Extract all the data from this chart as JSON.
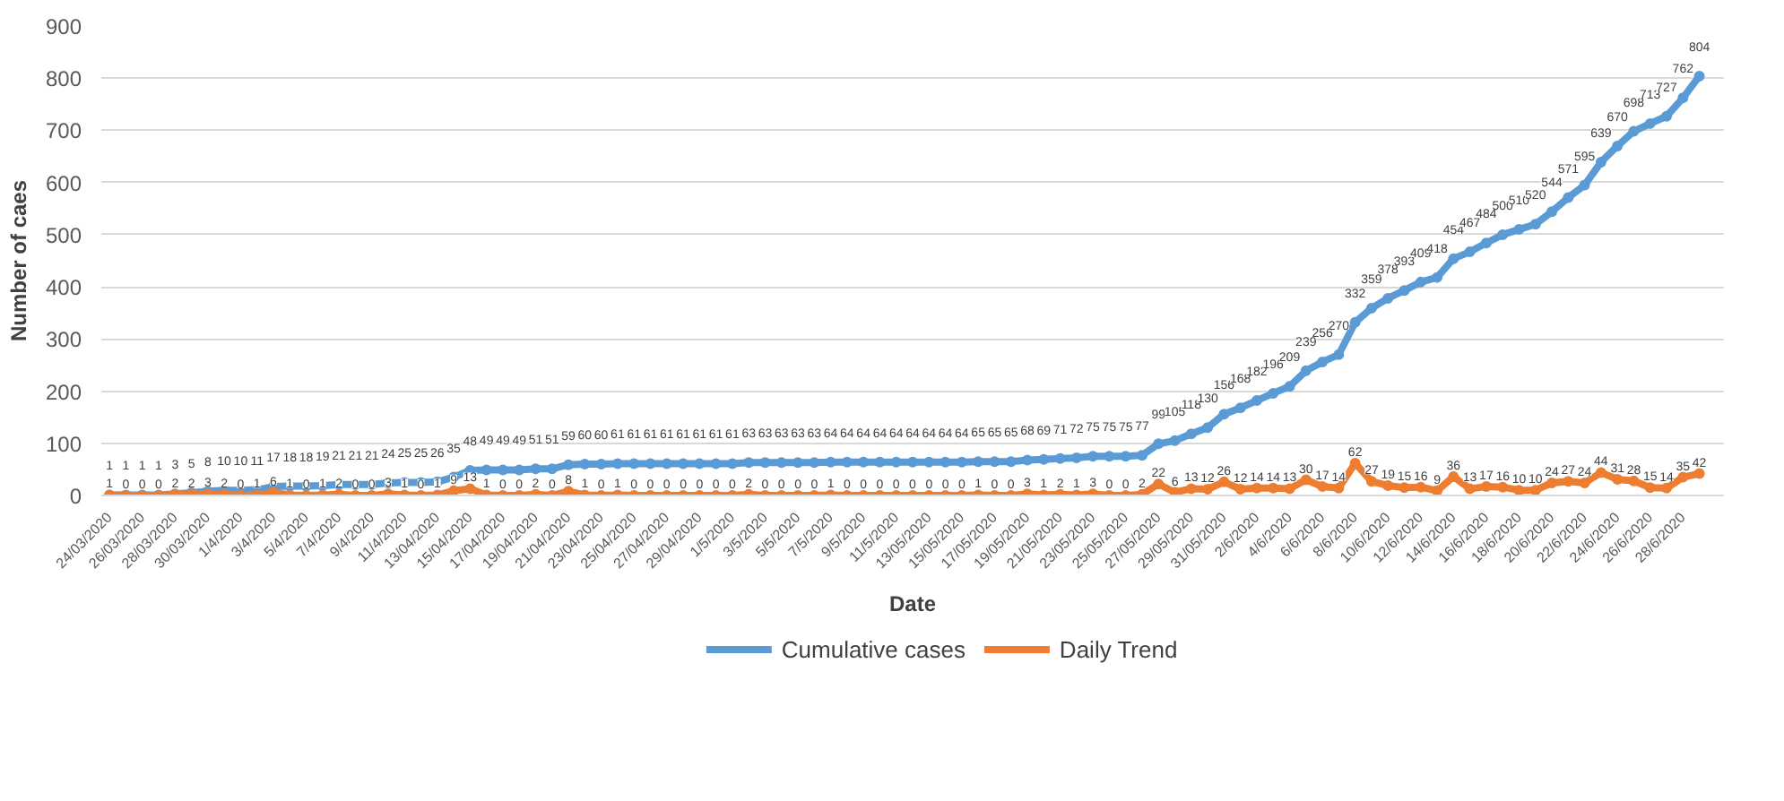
{
  "chart_data": {
    "type": "line",
    "xlabel": "Date",
    "ylabel": "Number of caes",
    "categories": [
      "24/03/2020",
      null,
      "26/03/2020",
      null,
      "28/03/2020",
      null,
      "30/03/2020",
      null,
      "1/4/2020",
      null,
      "3/4/2020",
      null,
      "5/4/2020",
      null,
      "7/4/2020",
      null,
      "9/4/2020",
      null,
      "11/4/2020",
      null,
      "13/04/2020",
      null,
      "15/04/2020",
      null,
      "17/04/2020",
      null,
      "19/04/2020",
      null,
      "21/04/2020",
      null,
      "23/04/2020",
      null,
      "25/04/2020",
      null,
      "27/04/2020",
      null,
      "29/04/2020",
      null,
      "1/5/2020",
      null,
      "3/5/2020",
      null,
      "5/5/2020",
      null,
      "7/5/2020",
      null,
      "9/5/2020",
      null,
      "11/5/2020",
      null,
      "13/05/2020",
      null,
      "15/05/2020",
      null,
      "17/05/2020",
      null,
      "19/05/2020",
      null,
      "21/05/2020",
      null,
      "23/05/2020",
      null,
      "25/05/2020",
      null,
      "27/05/2020",
      null,
      "29/05/2020",
      null,
      "31/05/2020",
      null,
      "2/6/2020",
      null,
      "4/6/2020",
      null,
      "6/6/2020",
      null,
      "8/6/2020",
      null,
      "10/6/2020",
      null,
      "12/6/2020",
      null,
      "14/6/2020",
      null,
      "16/6/2020",
      null,
      "18/6/2020",
      null,
      "20/6/2020",
      null,
      "22/6/2020",
      null,
      "24/6/2020",
      null,
      "26/6/2020",
      null,
      "28/6/2020",
      null
    ],
    "series": [
      {
        "name": "Cumulative cases",
        "color": "#5b9bd5",
        "values": [
          1,
          1,
          1,
          1,
          3,
          5,
          8,
          10,
          10,
          11,
          17,
          18,
          18,
          19,
          21,
          21,
          21,
          24,
          25,
          25,
          26,
          35,
          48,
          49,
          49,
          49,
          51,
          51,
          59,
          60,
          60,
          61,
          61,
          61,
          61,
          61,
          61,
          61,
          61,
          63,
          63,
          63,
          63,
          63,
          64,
          64,
          64,
          64,
          64,
          64,
          64,
          64,
          64,
          65,
          65,
          65,
          68,
          69,
          71,
          72,
          75,
          75,
          75,
          77,
          99,
          105,
          118,
          130,
          156,
          168,
          182,
          196,
          209,
          239,
          256,
          270,
          332,
          359,
          378,
          393,
          409,
          418,
          454,
          467,
          484,
          500,
          510,
          520,
          544,
          571,
          595,
          639,
          670,
          698,
          713,
          727,
          762,
          804
        ]
      },
      {
        "name": "Daily Trend",
        "color": "#ed7d31",
        "values": [
          1,
          0,
          0,
          0,
          2,
          2,
          3,
          2,
          0,
          1,
          6,
          1,
          0,
          1,
          2,
          0,
          0,
          3,
          1,
          0,
          1,
          9,
          13,
          1,
          0,
          0,
          2,
          0,
          8,
          1,
          0,
          1,
          0,
          0,
          0,
          0,
          0,
          0,
          0,
          2,
          0,
          0,
          0,
          0,
          1,
          0,
          0,
          0,
          0,
          0,
          0,
          0,
          0,
          1,
          0,
          0,
          3,
          1,
          2,
          1,
          3,
          0,
          0,
          2,
          22,
          6,
          13,
          12,
          26,
          12,
          14,
          14,
          13,
          30,
          17,
          14,
          62,
          27,
          19,
          15,
          16,
          9,
          36,
          13,
          17,
          16,
          10,
          10,
          24,
          27,
          24,
          44,
          31,
          28,
          15,
          14,
          35,
          42
        ]
      }
    ],
    "ylim": [
      0,
      900
    ],
    "yticks": [
      0,
      100,
      200,
      300,
      400,
      500,
      600,
      700,
      800,
      900
    ],
    "grid": "y",
    "legend": "bottom",
    "marker": "circle",
    "line_style": "solid",
    "data_labels": true
  }
}
